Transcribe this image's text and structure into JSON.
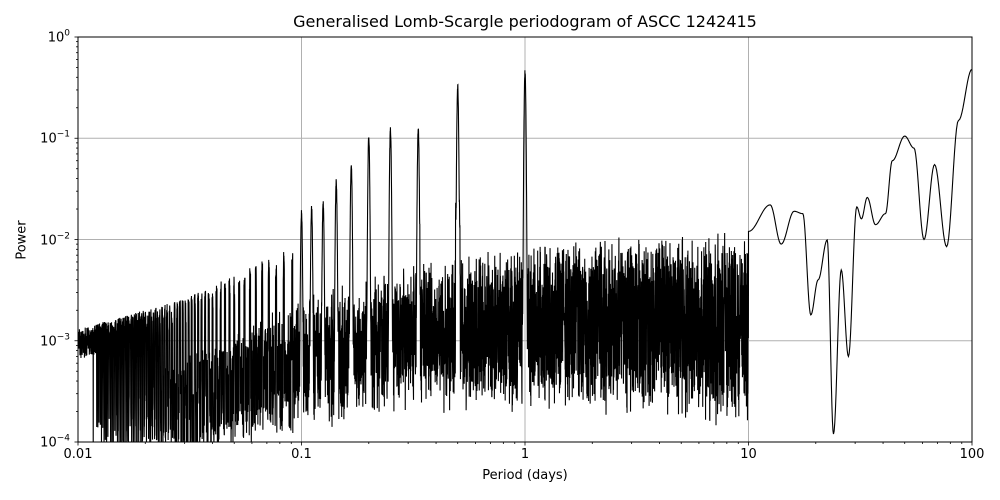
{
  "chart_data": {
    "type": "line",
    "title": "Generalised Lomb-Scargle periodogram of ASCC 1242415",
    "xlabel": "Period (days)",
    "ylabel": "Power",
    "xscale": "log",
    "yscale": "log",
    "xlim": [
      0.01,
      100
    ],
    "ylim": [
      0.0001,
      1
    ],
    "grid": true,
    "legend": null,
    "x_ticks": [
      {
        "value": 0.01,
        "label": "0.01"
      },
      {
        "value": 0.1,
        "label": "0.1"
      },
      {
        "value": 1,
        "label": "1"
      },
      {
        "value": 10,
        "label": "10"
      },
      {
        "value": 100,
        "label": "100"
      }
    ],
    "y_ticks": [
      {
        "value": 0.0001,
        "base": "10",
        "exp": "−4"
      },
      {
        "value": 0.001,
        "base": "10",
        "exp": "−3"
      },
      {
        "value": 0.01,
        "base": "10",
        "exp": "−2"
      },
      {
        "value": 0.1,
        "base": "10",
        "exp": "−1"
      },
      {
        "value": 1,
        "base": "10",
        "exp": "0"
      }
    ],
    "line_color": "#000000",
    "grid_color": "#b0b0b0",
    "dominant_peaks": [
      {
        "period": 1.0,
        "power": 0.48
      },
      {
        "period": 0.5,
        "power": 0.35
      },
      {
        "period": 0.333,
        "power": 0.13
      },
      {
        "period": 0.25,
        "power": 0.13
      },
      {
        "period": 0.2,
        "power": 0.11
      },
      {
        "period": 0.167,
        "power": 0.058
      },
      {
        "period": 0.143,
        "power": 0.04
      },
      {
        "period": 0.125,
        "power": 0.025
      },
      {
        "period": 0.111,
        "power": 0.022
      },
      {
        "period": 0.1,
        "power": 0.02
      }
    ],
    "noise_floor_envelope": [
      {
        "period": 0.01,
        "power": 0.00025
      },
      {
        "period": 0.03,
        "power": 0.0005
      },
      {
        "period": 0.1,
        "power": 0.0018
      },
      {
        "period": 0.3,
        "power": 0.004
      },
      {
        "period": 1.0,
        "power": 0.006
      },
      {
        "period": 3.0,
        "power": 0.008
      }
    ],
    "long_period_curve": [
      {
        "period": 10,
        "power": 0.012
      },
      {
        "period": 12.5,
        "power": 0.022
      },
      {
        "period": 14,
        "power": 0.009
      },
      {
        "period": 16,
        "power": 0.019
      },
      {
        "period": 17.5,
        "power": 0.018
      },
      {
        "period": 19,
        "power": 0.0018
      },
      {
        "period": 20.5,
        "power": 0.004
      },
      {
        "period": 22.5,
        "power": 0.0099
      },
      {
        "period": 24,
        "power": 0.00012
      },
      {
        "period": 26,
        "power": 0.005
      },
      {
        "period": 28,
        "power": 0.0007
      },
      {
        "period": 30.5,
        "power": 0.021
      },
      {
        "period": 32,
        "power": 0.016
      },
      {
        "period": 34,
        "power": 0.026
      },
      {
        "period": 37,
        "power": 0.014
      },
      {
        "period": 41,
        "power": 0.018
      },
      {
        "period": 44,
        "power": 0.06
      },
      {
        "period": 50,
        "power": 0.105
      },
      {
        "period": 55,
        "power": 0.08
      },
      {
        "period": 61,
        "power": 0.01
      },
      {
        "period": 68,
        "power": 0.055
      },
      {
        "period": 77,
        "power": 0.0085
      },
      {
        "period": 87,
        "power": 0.15
      },
      {
        "period": 100,
        "power": 0.48
      }
    ]
  }
}
